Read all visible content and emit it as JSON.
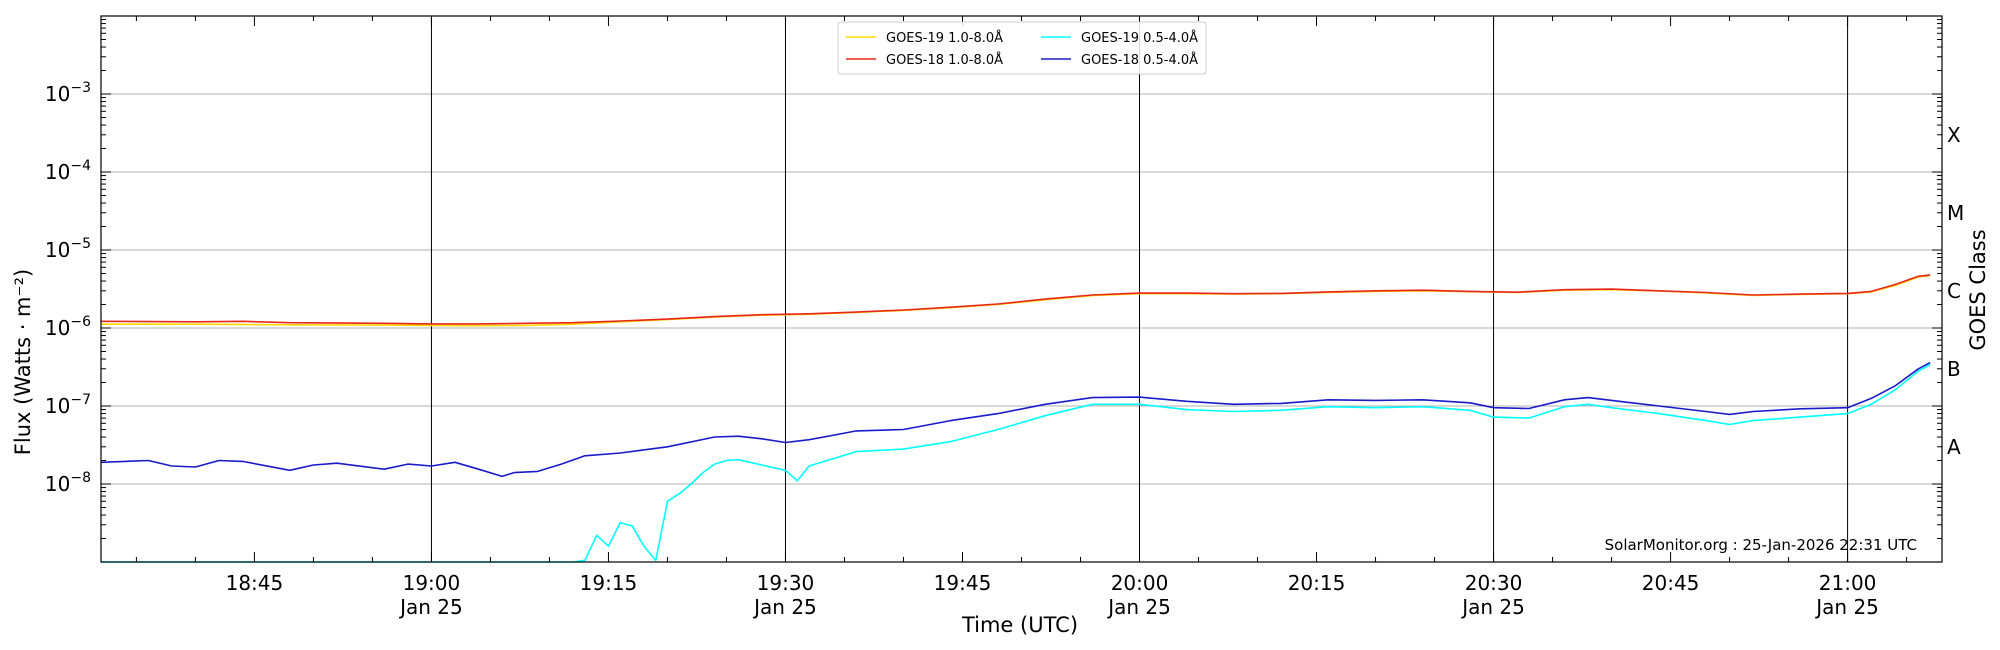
{
  "chart_data": {
    "type": "line",
    "title": "",
    "xlabel": "Time (UTC)",
    "ylabel": "Flux (Watts · m⁻²)",
    "y2label": "GOES Class",
    "yscale": "log",
    "xlim": [
      "18:32",
      "21:08"
    ],
    "ylim": [
      1e-09,
      0.01
    ],
    "grid": "horizontal major, vertical at 30-minute marks",
    "legend_position": "top-center",
    "credit": "SolarMonitor.org : 25-Jan-2026 22:31 UTC",
    "x_ticks": [
      {
        "time": "18:45",
        "date": ""
      },
      {
        "time": "19:00",
        "date": "Jan 25"
      },
      {
        "time": "19:15",
        "date": ""
      },
      {
        "time": "19:30",
        "date": "Jan 25"
      },
      {
        "time": "19:45",
        "date": ""
      },
      {
        "time": "20:00",
        "date": "Jan 25"
      },
      {
        "time": "20:15",
        "date": ""
      },
      {
        "time": "20:30",
        "date": "Jan 25"
      },
      {
        "time": "20:45",
        "date": ""
      },
      {
        "time": "21:00",
        "date": "Jan 25"
      }
    ],
    "y_ticks": [
      {
        "value": 1e-08,
        "mantissa": "10",
        "exponent": "−8"
      },
      {
        "value": 1e-07,
        "mantissa": "10",
        "exponent": "−7"
      },
      {
        "value": 1e-06,
        "mantissa": "10",
        "exponent": "−6"
      },
      {
        "value": 1e-05,
        "mantissa": "10",
        "exponent": "−5"
      },
      {
        "value": 0.0001,
        "mantissa": "10",
        "exponent": "−4"
      },
      {
        "value": 0.001,
        "mantissa": "10",
        "exponent": "−3"
      }
    ],
    "goes_classes": [
      {
        "label": "A",
        "value": 3e-08
      },
      {
        "label": "B",
        "value": 3e-07
      },
      {
        "label": "C",
        "value": 3e-06
      },
      {
        "label": "M",
        "value": 3e-05
      },
      {
        "label": "X",
        "value": 0.0003
      }
    ],
    "series": [
      {
        "name": "GOES-19 1.0-8.0Å",
        "color": "#ffd700",
        "points": [
          [
            "18:32",
            1.12e-06
          ],
          [
            "18:40",
            1.12e-06
          ],
          [
            "18:48",
            1.1e-06
          ],
          [
            "18:56",
            1.09e-06
          ],
          [
            "19:00",
            1.08e-06
          ],
          [
            "19:04",
            1.07e-06
          ],
          [
            "19:08",
            1.08e-06
          ],
          [
            "19:12",
            1.12e-06
          ],
          [
            "19:16",
            1.2e-06
          ],
          [
            "19:20",
            1.28e-06
          ],
          [
            "19:24",
            1.38e-06
          ],
          [
            "19:28",
            1.46e-06
          ],
          [
            "19:32",
            1.5e-06
          ],
          [
            "19:36",
            1.58e-06
          ],
          [
            "19:40",
            1.68e-06
          ],
          [
            "19:44",
            1.82e-06
          ],
          [
            "19:48",
            2e-06
          ],
          [
            "19:52",
            2.3e-06
          ],
          [
            "19:56",
            2.6e-06
          ],
          [
            "20:00",
            2.75e-06
          ],
          [
            "20:04",
            2.75e-06
          ],
          [
            "20:08",
            2.72e-06
          ],
          [
            "20:12",
            2.75e-06
          ],
          [
            "20:16",
            2.85e-06
          ],
          [
            "20:20",
            2.95e-06
          ],
          [
            "20:24",
            3e-06
          ],
          [
            "20:28",
            2.92e-06
          ],
          [
            "20:32",
            2.85e-06
          ],
          [
            "20:36",
            3.05e-06
          ],
          [
            "20:40",
            3.1e-06
          ],
          [
            "20:44",
            2.98e-06
          ],
          [
            "20:48",
            2.82e-06
          ],
          [
            "20:52",
            2.62e-06
          ],
          [
            "20:56",
            2.7e-06
          ],
          [
            "21:00",
            2.75e-06
          ],
          [
            "21:02",
            2.9e-06
          ],
          [
            "21:04",
            3.5e-06
          ],
          [
            "21:06",
            4.5e-06
          ],
          [
            "21:07",
            4.7e-06
          ]
        ]
      },
      {
        "name": "GOES-18 1.0-8.0Å",
        "color": "#e8271c",
        "points": [
          [
            "18:32",
            1.22e-06
          ],
          [
            "18:40",
            1.2e-06
          ],
          [
            "18:44",
            1.22e-06
          ],
          [
            "18:48",
            1.17e-06
          ],
          [
            "18:56",
            1.15e-06
          ],
          [
            "19:00",
            1.13e-06
          ],
          [
            "19:04",
            1.13e-06
          ],
          [
            "19:08",
            1.15e-06
          ],
          [
            "19:12",
            1.17e-06
          ],
          [
            "19:16",
            1.23e-06
          ],
          [
            "19:20",
            1.3e-06
          ],
          [
            "19:24",
            1.4e-06
          ],
          [
            "19:28",
            1.48e-06
          ],
          [
            "19:32",
            1.52e-06
          ],
          [
            "19:36",
            1.6e-06
          ],
          [
            "19:40",
            1.7e-06
          ],
          [
            "19:44",
            1.85e-06
          ],
          [
            "19:48",
            2.03e-06
          ],
          [
            "19:52",
            2.35e-06
          ],
          [
            "19:56",
            2.65e-06
          ],
          [
            "20:00",
            2.8e-06
          ],
          [
            "20:04",
            2.8e-06
          ],
          [
            "20:08",
            2.75e-06
          ],
          [
            "20:12",
            2.78e-06
          ],
          [
            "20:16",
            2.9e-06
          ],
          [
            "20:20",
            3e-06
          ],
          [
            "20:24",
            3.05e-06
          ],
          [
            "20:28",
            2.95e-06
          ],
          [
            "20:32",
            2.88e-06
          ],
          [
            "20:36",
            3.1e-06
          ],
          [
            "20:40",
            3.15e-06
          ],
          [
            "20:44",
            3e-06
          ],
          [
            "20:48",
            2.85e-06
          ],
          [
            "20:52",
            2.65e-06
          ],
          [
            "20:56",
            2.72e-06
          ],
          [
            "21:00",
            2.78e-06
          ],
          [
            "21:02",
            2.95e-06
          ],
          [
            "21:04",
            3.6e-06
          ],
          [
            "21:06",
            4.6e-06
          ],
          [
            "21:07",
            4.8e-06
          ]
        ]
      },
      {
        "name": "GOES-19 0.5-4.0Å",
        "color": "#00ffff",
        "points": [
          [
            "18:32",
            1e-09
          ],
          [
            "19:00",
            1e-09
          ],
          [
            "19:12",
            1e-09
          ],
          [
            "19:13",
            1.05e-09
          ],
          [
            "19:14",
            2.2e-09
          ],
          [
            "19:15",
            1.6e-09
          ],
          [
            "19:16",
            3.2e-09
          ],
          [
            "19:17",
            2.9e-09
          ],
          [
            "19:18",
            1.6e-09
          ],
          [
            "19:19",
            1.05e-09
          ],
          [
            "19:20",
            6e-09
          ],
          [
            "19:21",
            7.5e-09
          ],
          [
            "19:22",
            1e-08
          ],
          [
            "19:23",
            1.4e-08
          ],
          [
            "19:24",
            1.8e-08
          ],
          [
            "19:25",
            2e-08
          ],
          [
            "19:26",
            2.05e-08
          ],
          [
            "19:28",
            1.75e-08
          ],
          [
            "19:30",
            1.5e-08
          ],
          [
            "19:31",
            1.1e-08
          ],
          [
            "19:32",
            1.7e-08
          ],
          [
            "19:34",
            2.1e-08
          ],
          [
            "19:36",
            2.6e-08
          ],
          [
            "19:40",
            2.8e-08
          ],
          [
            "19:44",
            3.5e-08
          ],
          [
            "19:48",
            5e-08
          ],
          [
            "19:52",
            7.5e-08
          ],
          [
            "19:56",
            1.05e-07
          ],
          [
            "20:00",
            1.05e-07
          ],
          [
            "20:04",
            9e-08
          ],
          [
            "20:08",
            8.5e-08
          ],
          [
            "20:12",
            8.8e-08
          ],
          [
            "20:16",
            9.8e-08
          ],
          [
            "20:20",
            9.5e-08
          ],
          [
            "20:24",
            9.8e-08
          ],
          [
            "20:28",
            8.8e-08
          ],
          [
            "20:30",
            7.2e-08
          ],
          [
            "20:33",
            7e-08
          ],
          [
            "20:36",
            9.8e-08
          ],
          [
            "20:38",
            1.05e-07
          ],
          [
            "20:40",
            9.5e-08
          ],
          [
            "20:44",
            8e-08
          ],
          [
            "20:48",
            6.5e-08
          ],
          [
            "20:50",
            5.8e-08
          ],
          [
            "20:52",
            6.5e-08
          ],
          [
            "20:56",
            7.2e-08
          ],
          [
            "21:00",
            8e-08
          ],
          [
            "21:02",
            1.05e-07
          ],
          [
            "21:04",
            1.6e-07
          ],
          [
            "21:06",
            2.8e-07
          ],
          [
            "21:07",
            3.4e-07
          ]
        ]
      },
      {
        "name": "GOES-18 0.5-4.0Å",
        "color": "#1a1acc",
        "points": [
          [
            "18:32",
            1.9e-08
          ],
          [
            "18:36",
            2e-08
          ],
          [
            "18:38",
            1.7e-08
          ],
          [
            "18:40",
            1.65e-08
          ],
          [
            "18:42",
            2e-08
          ],
          [
            "18:44",
            1.95e-08
          ],
          [
            "18:48",
            1.5e-08
          ],
          [
            "18:50",
            1.75e-08
          ],
          [
            "18:52",
            1.85e-08
          ],
          [
            "18:56",
            1.55e-08
          ],
          [
            "18:58",
            1.8e-08
          ],
          [
            "19:00",
            1.7e-08
          ],
          [
            "19:02",
            1.9e-08
          ],
          [
            "19:04",
            1.55e-08
          ],
          [
            "19:06",
            1.25e-08
          ],
          [
            "19:07",
            1.4e-08
          ],
          [
            "19:09",
            1.45e-08
          ],
          [
            "19:11",
            1.8e-08
          ],
          [
            "19:13",
            2.3e-08
          ],
          [
            "19:16",
            2.5e-08
          ],
          [
            "19:20",
            3e-08
          ],
          [
            "19:24",
            4e-08
          ],
          [
            "19:26",
            4.1e-08
          ],
          [
            "19:28",
            3.8e-08
          ],
          [
            "19:30",
            3.4e-08
          ],
          [
            "19:32",
            3.7e-08
          ],
          [
            "19:34",
            4.2e-08
          ],
          [
            "19:36",
            4.8e-08
          ],
          [
            "19:40",
            5e-08
          ],
          [
            "19:44",
            6.5e-08
          ],
          [
            "19:48",
            8e-08
          ],
          [
            "19:52",
            1.05e-07
          ],
          [
            "19:56",
            1.28e-07
          ],
          [
            "20:00",
            1.3e-07
          ],
          [
            "20:04",
            1.15e-07
          ],
          [
            "20:08",
            1.05e-07
          ],
          [
            "20:12",
            1.08e-07
          ],
          [
            "20:16",
            1.2e-07
          ],
          [
            "20:20",
            1.18e-07
          ],
          [
            "20:24",
            1.2e-07
          ],
          [
            "20:28",
            1.1e-07
          ],
          [
            "20:30",
            9.5e-08
          ],
          [
            "20:33",
            9.3e-08
          ],
          [
            "20:36",
            1.2e-07
          ],
          [
            "20:38",
            1.28e-07
          ],
          [
            "20:40",
            1.18e-07
          ],
          [
            "20:44",
            1e-07
          ],
          [
            "20:48",
            8.5e-08
          ],
          [
            "20:50",
            7.8e-08
          ],
          [
            "20:52",
            8.5e-08
          ],
          [
            "20:56",
            9.2e-08
          ],
          [
            "21:00",
            9.5e-08
          ],
          [
            "21:02",
            1.25e-07
          ],
          [
            "21:04",
            1.8e-07
          ],
          [
            "21:06",
            3e-07
          ],
          [
            "21:07",
            3.6e-07
          ]
        ]
      }
    ]
  }
}
